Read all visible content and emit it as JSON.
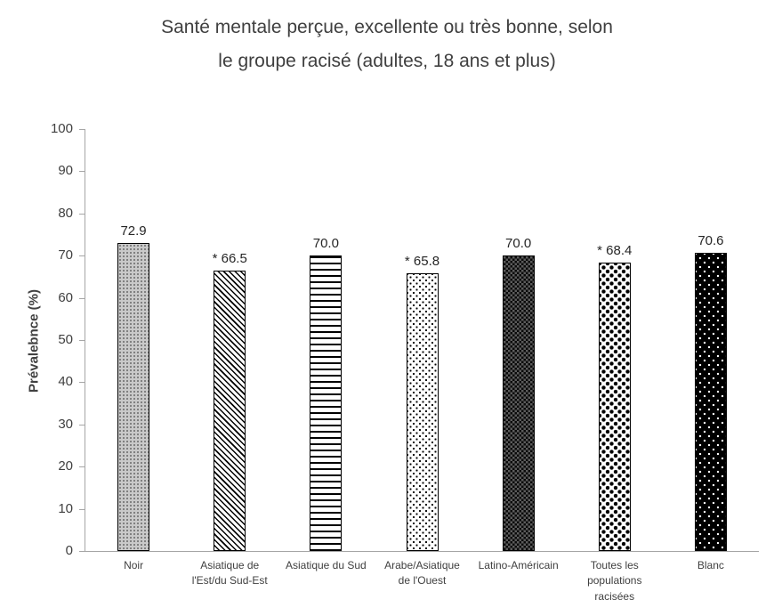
{
  "chart_data": {
    "type": "bar",
    "title": "Santé mentale perçue, excellente ou très bonne, selon\nle groupe racisé (adultes, 18 ans et plus)",
    "xlabel": "",
    "ylabel": "Prévalebnce (%)",
    "ylim": [
      0,
      100
    ],
    "ytick_step": 10,
    "grid": false,
    "legend_position": "none",
    "categories": [
      "Noir",
      "Asiatique de\nl'Est/du Sud-Est",
      "Asiatique du Sud",
      "Arabe/Asiatique\nde l'Ouest",
      "Latino-Américain",
      "Toutes les\npopulations\nracisées",
      "Blanc"
    ],
    "values": [
      72.9,
      66.5,
      70.0,
      65.8,
      70.0,
      68.4,
      70.6
    ],
    "data_labels": [
      "72.9",
      "* 66.5",
      "70.0",
      "* 65.8",
      "70.0",
      "* 68.4",
      "70.6"
    ],
    "bar_patterns": [
      "gray-dots",
      "diagonal-hatch",
      "horizontal-lines",
      "sparse-dots",
      "dark-checker",
      "diamond-dots",
      "black-dots"
    ],
    "axis_color": "#a6a6a6",
    "text_color": "#404040"
  }
}
